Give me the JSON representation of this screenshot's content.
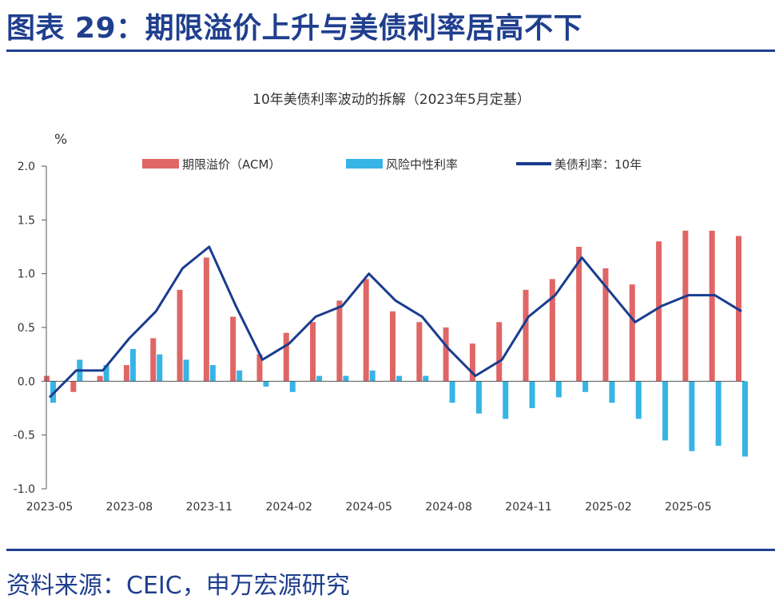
{
  "page_title": "图表 29：期限溢价上升与美债利率居高不下",
  "source": "资料来源：CEIC，申万宏源研究",
  "colors": {
    "acm": "#e06666",
    "neutral": "#36b4e5",
    "yield": "#1a3c8f",
    "brand": "#1f3f8e",
    "axis": "#555555"
  },
  "chart_data": {
    "type": "bar",
    "title": "10年美债利率波动的拆解（2023年5月定基）",
    "ylabel": "%",
    "xlabel": "",
    "ylim": [
      -1.0,
      2.0
    ],
    "yticks": [
      "2.0",
      "1.5",
      "1.0",
      "0.5",
      "0.0",
      "-0.5",
      "-1.0"
    ],
    "ytick_values": [
      2.0,
      1.5,
      1.0,
      0.5,
      0.0,
      -0.5,
      -1.0
    ],
    "xticks": [
      "2023-05",
      "2023-08",
      "2023-11",
      "2024-02",
      "2024-05",
      "2024-08",
      "2024-11",
      "2025-02",
      "2025-05"
    ],
    "legend": [
      "期限溢价（ACM）",
      "风险中性利率",
      "美债利率：10年"
    ],
    "legend_position": "top",
    "x": [
      "2023-05",
      "2023-06",
      "2023-07",
      "2023-08",
      "2023-09",
      "2023-10",
      "2023-11",
      "2023-12",
      "2024-01",
      "2024-02",
      "2024-03",
      "2024-04",
      "2024-05",
      "2024-06",
      "2024-07",
      "2024-08",
      "2024-09",
      "2024-10",
      "2024-11",
      "2024-12",
      "2025-01",
      "2025-02",
      "2025-03",
      "2025-04",
      "2025-05",
      "2025-06",
      "2025-07"
    ],
    "series": [
      {
        "name": "期限溢价（ACM）",
        "kind": "bar",
        "values": [
          0.05,
          -0.1,
          0.05,
          0.15,
          0.4,
          0.85,
          1.15,
          0.6,
          0.25,
          0.45,
          0.55,
          0.75,
          0.95,
          0.65,
          0.55,
          0.5,
          0.35,
          0.55,
          0.85,
          0.95,
          1.25,
          1.05,
          0.9,
          1.3,
          1.4,
          1.4,
          1.35
        ]
      },
      {
        "name": "风险中性利率",
        "kind": "bar",
        "values": [
          -0.2,
          0.2,
          0.15,
          0.3,
          0.25,
          0.2,
          0.15,
          0.1,
          -0.05,
          -0.1,
          0.05,
          0.05,
          0.1,
          0.05,
          0.05,
          -0.2,
          -0.3,
          -0.35,
          -0.25,
          -0.15,
          -0.1,
          -0.2,
          -0.35,
          -0.55,
          -0.65,
          -0.6,
          -0.7
        ]
      },
      {
        "name": "美债利率：10年",
        "kind": "line",
        "values": [
          -0.15,
          0.1,
          0.1,
          0.4,
          0.65,
          1.05,
          1.25,
          0.7,
          0.2,
          0.35,
          0.6,
          0.7,
          1.0,
          0.75,
          0.6,
          0.3,
          0.05,
          0.2,
          0.6,
          0.8,
          1.15,
          0.85,
          0.55,
          0.7,
          0.8,
          0.8,
          0.65
        ]
      }
    ]
  }
}
